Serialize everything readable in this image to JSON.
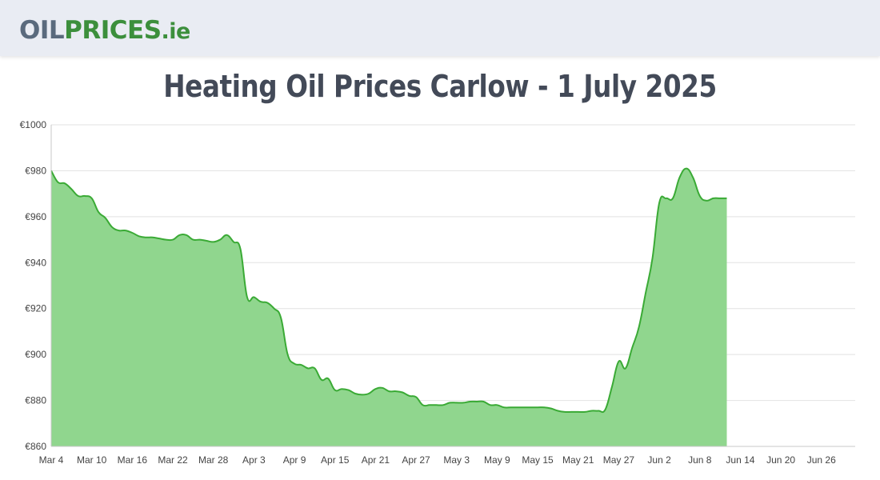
{
  "header": {
    "logo_part1": "OIL",
    "logo_part2": "PRICES",
    "logo_part3": ".ie"
  },
  "chart_data": {
    "type": "area",
    "title": "Heating Oil Prices Carlow - 1 July 2025",
    "xlabel": "",
    "ylabel": "",
    "ylim": [
      860,
      1000
    ],
    "y_ticks": [
      "€1000",
      "€980",
      "€960",
      "€940",
      "€920",
      "€900",
      "€880",
      "€860"
    ],
    "y_tick_values": [
      1000,
      980,
      960,
      940,
      920,
      900,
      880,
      860
    ],
    "x_ticks": [
      "Mar 4",
      "Mar 10",
      "Mar 16",
      "Mar 22",
      "Mar 28",
      "Apr 3",
      "Apr 9",
      "Apr 15",
      "Apr 21",
      "Apr 27",
      "May 3",
      "May 9",
      "May 15",
      "May 21",
      "May 27",
      "Jun 2",
      "Jun 8",
      "Jun 14",
      "Jun 20",
      "Jun 26"
    ],
    "x_tick_days": [
      0,
      6,
      12,
      18,
      24,
      30,
      36,
      42,
      48,
      54,
      60,
      66,
      72,
      78,
      84,
      90,
      96,
      102,
      108,
      114
    ],
    "x_range_days": [
      0,
      119
    ],
    "grid": true,
    "colors": {
      "line": "#3aaa35",
      "fill": "#90d68e",
      "grid": "#e2e2e2",
      "axis": "#c8c8c8"
    },
    "series": [
      {
        "name": "Carlow",
        "points": [
          [
            0,
            980
          ],
          [
            1,
            975
          ],
          [
            2,
            974.5
          ],
          [
            3,
            972
          ],
          [
            4,
            969
          ],
          [
            5,
            969
          ],
          [
            6,
            968
          ],
          [
            7,
            962
          ],
          [
            8,
            959.5
          ],
          [
            9,
            955.5
          ],
          [
            10,
            954
          ],
          [
            11,
            954
          ],
          [
            12,
            953
          ],
          [
            13,
            951.5
          ],
          [
            14,
            951
          ],
          [
            15,
            951
          ],
          [
            16,
            950.5
          ],
          [
            17,
            950
          ],
          [
            18,
            950
          ],
          [
            19,
            952
          ],
          [
            20,
            952
          ],
          [
            21,
            950
          ],
          [
            22,
            950
          ],
          [
            23,
            949.5
          ],
          [
            24,
            949
          ],
          [
            25,
            950
          ],
          [
            26,
            952
          ],
          [
            27,
            949
          ],
          [
            28,
            946
          ],
          [
            29,
            925
          ],
          [
            30,
            925
          ],
          [
            31,
            923
          ],
          [
            32,
            922.5
          ],
          [
            33,
            920
          ],
          [
            34,
            916
          ],
          [
            35,
            900
          ],
          [
            36,
            896
          ],
          [
            37,
            895.5
          ],
          [
            38,
            894
          ],
          [
            39,
            894
          ],
          [
            40,
            889
          ],
          [
            41,
            889.5
          ],
          [
            42,
            884.5
          ],
          [
            43,
            885
          ],
          [
            44,
            884.5
          ],
          [
            45,
            883
          ],
          [
            46,
            882.5
          ],
          [
            47,
            883
          ],
          [
            48,
            885
          ],
          [
            49,
            885.5
          ],
          [
            50,
            884
          ],
          [
            51,
            884
          ],
          [
            52,
            883.5
          ],
          [
            53,
            882
          ],
          [
            54,
            881.5
          ],
          [
            55,
            878
          ],
          [
            56,
            878
          ],
          [
            57,
            878
          ],
          [
            58,
            878
          ],
          [
            59,
            879
          ],
          [
            60,
            879
          ],
          [
            61,
            879
          ],
          [
            62,
            879.5
          ],
          [
            63,
            879.5
          ],
          [
            64,
            879.5
          ],
          [
            65,
            878
          ],
          [
            66,
            878
          ],
          [
            67,
            877
          ],
          [
            68,
            877
          ],
          [
            69,
            877
          ],
          [
            70,
            877
          ],
          [
            71,
            877
          ],
          [
            72,
            877
          ],
          [
            73,
            877
          ],
          [
            74,
            876.5
          ],
          [
            75,
            875.5
          ],
          [
            76,
            875
          ],
          [
            77,
            875
          ],
          [
            78,
            875
          ],
          [
            79,
            875
          ],
          [
            80,
            875.5
          ],
          [
            81,
            875.5
          ],
          [
            82,
            876
          ],
          [
            83,
            886
          ],
          [
            84,
            897
          ],
          [
            85,
            894
          ],
          [
            86,
            903
          ],
          [
            87,
            912
          ],
          [
            88,
            927
          ],
          [
            89,
            942
          ],
          [
            90,
            966
          ],
          [
            91,
            968
          ],
          [
            92,
            968
          ],
          [
            93,
            977
          ],
          [
            94,
            981
          ],
          [
            95,
            977
          ],
          [
            96,
            969
          ],
          [
            97,
            967
          ],
          [
            98,
            968
          ],
          [
            99,
            968
          ],
          [
            100,
            968
          ]
        ]
      }
    ]
  }
}
